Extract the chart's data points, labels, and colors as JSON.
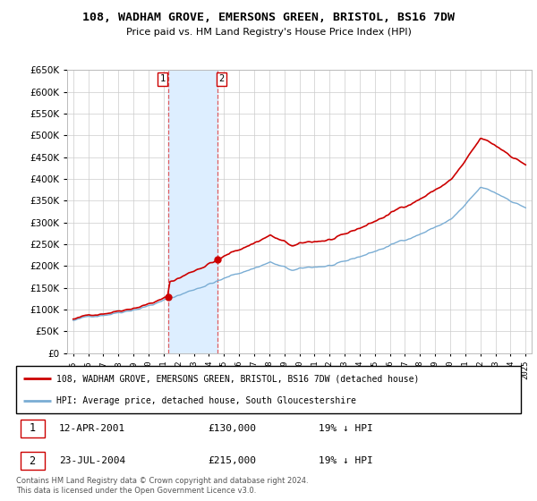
{
  "title": "108, WADHAM GROVE, EMERSONS GREEN, BRISTOL, BS16 7DW",
  "subtitle": "Price paid vs. HM Land Registry's House Price Index (HPI)",
  "ylim": [
    0,
    650000
  ],
  "ytick_vals": [
    0,
    50000,
    100000,
    150000,
    200000,
    250000,
    300000,
    350000,
    400000,
    450000,
    500000,
    550000,
    600000,
    650000
  ],
  "hpi_color": "#7aadd4",
  "price_color": "#cc0000",
  "sale1_date": 2001.28,
  "sale1_price": 130000,
  "sale2_date": 2004.55,
  "sale2_price": 215000,
  "shade_color": "#ddeeff",
  "legend_line1": "108, WADHAM GROVE, EMERSONS GREEN, BRISTOL, BS16 7DW (detached house)",
  "legend_line2": "HPI: Average price, detached house, South Gloucestershire",
  "copyright_text": "Contains HM Land Registry data © Crown copyright and database right 2024.\nThis data is licensed under the Open Government Licence v3.0."
}
